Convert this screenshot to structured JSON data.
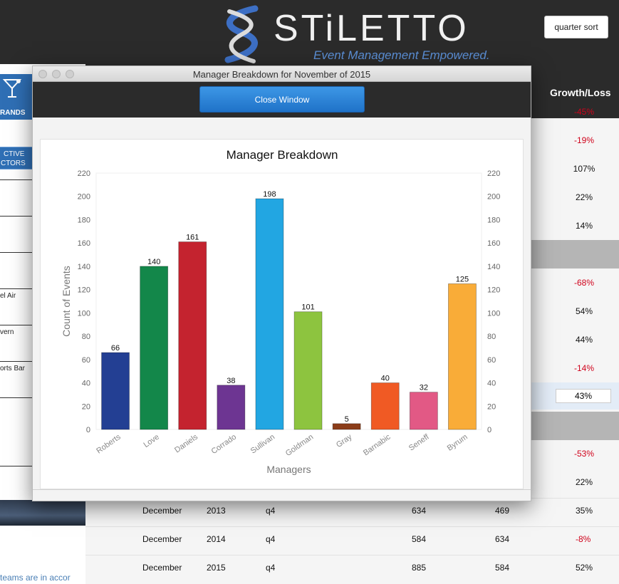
{
  "window": {
    "title": "Manager Breakdown for November of 2015",
    "close_label": "Close Window"
  },
  "app": {
    "logo_text": "STiLETTO",
    "tagline": "Event Management Empowered.",
    "quarter_sort_label": "quarter sort",
    "growth_header": "Growth/Loss",
    "sidebar": {
      "brands_label": "RANDS",
      "directors_line1": "CTIVE",
      "directors_line2": "CTORS",
      "items": [
        "el Air",
        "vern",
        "orts Bar"
      ]
    },
    "footer_text": "teams are in accor",
    "growth_values": [
      {
        "text": "-45%",
        "neg": true
      },
      {
        "text": "-19%",
        "neg": true
      },
      {
        "text": "107%",
        "neg": false
      },
      {
        "text": "22%",
        "neg": false
      },
      {
        "text": "14%",
        "neg": false
      },
      {
        "text": "-68%",
        "neg": true
      },
      {
        "text": "54%",
        "neg": false
      },
      {
        "text": "44%",
        "neg": false
      },
      {
        "text": "-14%",
        "neg": true
      },
      {
        "text": "43%",
        "neg": false
      },
      {
        "text": "-53%",
        "neg": true
      },
      {
        "text": "22%",
        "neg": false
      }
    ],
    "bottom_rows": [
      {
        "month": "December",
        "year": "2013",
        "quarter": "q4",
        "a": "634",
        "b": "469",
        "growth": "35%",
        "neg": false
      },
      {
        "month": "December",
        "year": "2014",
        "quarter": "q4",
        "a": "584",
        "b": "634",
        "growth": "-8%",
        "neg": true
      },
      {
        "month": "December",
        "year": "2015",
        "quarter": "q4",
        "a": "885",
        "b": "584",
        "growth": "52%",
        "neg": false
      }
    ]
  },
  "chart_data": {
    "type": "bar",
    "title": "Manager Breakdown",
    "xlabel": "Managers",
    "ylabel": "Count of Events",
    "ylim": [
      0,
      220
    ],
    "yticks": [
      0,
      20,
      40,
      60,
      80,
      100,
      120,
      140,
      160,
      180,
      200,
      220
    ],
    "grid": false,
    "legend": "none",
    "categories": [
      "Roberts",
      "Love",
      "Daniels",
      "Corrado",
      "Sullivan",
      "Goldman",
      "Gray",
      "Barnabic",
      "Seneff",
      "Byrum"
    ],
    "values": [
      66,
      140,
      161,
      38,
      198,
      101,
      5,
      40,
      32,
      125
    ],
    "colors": [
      "#233f93",
      "#13874a",
      "#c4232f",
      "#6d3592",
      "#22a6e2",
      "#8dc43f",
      "#8b3d19",
      "#f05a24",
      "#e25985",
      "#f9ac38"
    ]
  }
}
